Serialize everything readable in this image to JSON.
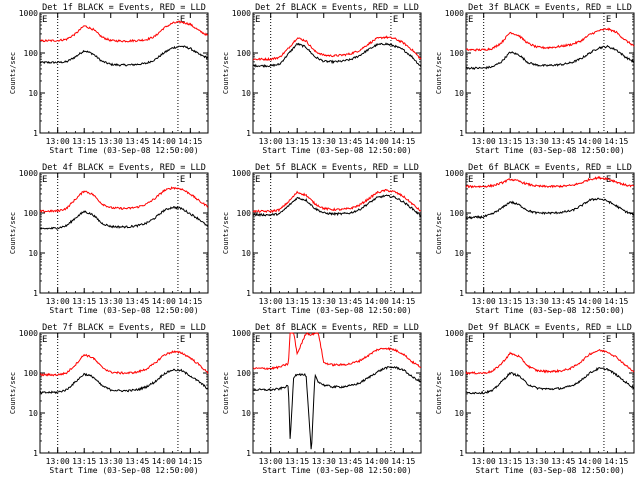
{
  "figure": {
    "ylabel": "Counts/sec",
    "xlabel": "Start Time (03-Sep-08 12:50:00)",
    "y_ticks": [
      "1",
      "10",
      "100",
      "1000"
    ],
    "x_ticks": [
      "13:00",
      "13:15",
      "13:30",
      "13:45",
      "14:00",
      "14:15"
    ],
    "corner_markers": [
      "E",
      "E"
    ],
    "series_colors": {
      "events": "#000000",
      "lld": "#ff0000"
    }
  },
  "chart_data": [
    {
      "type": "line",
      "title": "Det 1f BLACK = Events, RED = LLD",
      "xlabel": "Start Time (03-Sep-08 12:50:00)",
      "ylabel": "Counts/sec",
      "xlim": [
        "12:50",
        "14:25"
      ],
      "ylim": [
        1,
        1000
      ],
      "yscale": "log",
      "grid": false,
      "markers": [
        "13:00",
        "14:08"
      ],
      "x": [
        "12:50",
        "13:00",
        "13:05",
        "13:10",
        "13:15",
        "13:20",
        "13:25",
        "13:30",
        "13:35",
        "13:40",
        "13:45",
        "13:50",
        "13:55",
        "14:00",
        "14:05",
        "14:10",
        "14:15",
        "14:20",
        "14:25"
      ],
      "series": [
        {
          "values": [
            58,
            58,
            60,
            80,
            115,
            95,
            62,
            52,
            50,
            50,
            52,
            55,
            68,
            100,
            135,
            148,
            130,
            92,
            75
          ]
        },
        {
          "values": [
            200,
            205,
            220,
            300,
            480,
            390,
            250,
            205,
            200,
            200,
            205,
            215,
            260,
            420,
            560,
            600,
            520,
            360,
            270
          ]
        }
      ]
    },
    {
      "type": "line",
      "title": "Det 2f BLACK = Events, RED = LLD",
      "xlabel": "Start Time (03-Sep-08 12:50:00)",
      "ylabel": "Counts/sec",
      "xlim": [
        "12:50",
        "14:25"
      ],
      "ylim": [
        1,
        1000
      ],
      "yscale": "log",
      "grid": false,
      "markers": [
        "13:00",
        "14:08"
      ],
      "x": [
        "12:50",
        "13:00",
        "13:05",
        "13:10",
        "13:15",
        "13:20",
        "13:25",
        "13:30",
        "13:35",
        "13:40",
        "13:45",
        "13:50",
        "13:55",
        "14:00",
        "14:05",
        "14:10",
        "14:15",
        "14:20",
        "14:25"
      ],
      "series": [
        {
          "values": [
            48,
            48,
            52,
            95,
            170,
            140,
            80,
            62,
            60,
            62,
            68,
            85,
            120,
            160,
            170,
            150,
            120,
            80,
            45
          ]
        },
        {
          "values": [
            70,
            70,
            78,
            130,
            240,
            200,
            110,
            88,
            85,
            88,
            95,
            115,
            165,
            230,
            250,
            230,
            180,
            120,
            70
          ]
        }
      ]
    },
    {
      "type": "line",
      "title": "Det 3f BLACK = Events, RED = LLD",
      "xlabel": "Start Time (03-Sep-08 12:50:00)",
      "ylabel": "Counts/sec",
      "xlim": [
        "12:50",
        "14:25"
      ],
      "ylim": [
        1,
        1000
      ],
      "yscale": "log",
      "grid": false,
      "markers": [
        "13:00",
        "14:08"
      ],
      "x": [
        "12:50",
        "13:00",
        "13:05",
        "13:10",
        "13:15",
        "13:20",
        "13:25",
        "13:30",
        "13:35",
        "13:40",
        "13:45",
        "13:50",
        "13:55",
        "14:00",
        "14:05",
        "14:10",
        "14:15",
        "14:20",
        "14:25"
      ],
      "series": [
        {
          "values": [
            42,
            42,
            45,
            60,
            105,
            90,
            58,
            50,
            48,
            50,
            52,
            58,
            72,
            100,
            135,
            145,
            120,
            80,
            60
          ]
        },
        {
          "values": [
            120,
            120,
            130,
            180,
            330,
            270,
            175,
            140,
            135,
            140,
            150,
            165,
            200,
            290,
            360,
            400,
            330,
            210,
            150
          ]
        }
      ]
    },
    {
      "type": "line",
      "title": "Det 4f BLACK = Events, RED = LLD",
      "xlabel": "Start Time (03-Sep-08 12:50:00)",
      "ylabel": "Counts/sec",
      "xlim": [
        "12:50",
        "14:25"
      ],
      "ylim": [
        1,
        1000
      ],
      "yscale": "log",
      "grid": false,
      "markers": [
        "13:00",
        "14:08"
      ],
      "x": [
        "12:50",
        "13:00",
        "13:05",
        "13:10",
        "13:15",
        "13:20",
        "13:25",
        "13:30",
        "13:35",
        "13:40",
        "13:45",
        "13:50",
        "13:55",
        "14:00",
        "14:05",
        "14:10",
        "14:15",
        "14:20",
        "14:25"
      ],
      "series": [
        {
          "values": [
            40,
            42,
            48,
            75,
            110,
            90,
            55,
            46,
            45,
            45,
            48,
            55,
            75,
            115,
            140,
            130,
            95,
            70,
            45
          ]
        },
        {
          "values": [
            110,
            112,
            130,
            220,
            360,
            290,
            170,
            135,
            130,
            130,
            140,
            165,
            230,
            360,
            430,
            400,
            300,
            200,
            145
          ]
        }
      ]
    },
    {
      "type": "line",
      "title": "Det 5f BLACK = Events, RED = LLD",
      "xlabel": "Start Time (03-Sep-08 12:50:00)",
      "ylabel": "Counts/sec",
      "xlim": [
        "12:50",
        "14:25"
      ],
      "ylim": [
        1,
        1000
      ],
      "yscale": "log",
      "grid": false,
      "markers": [
        "13:00",
        "14:08"
      ],
      "x": [
        "12:50",
        "13:00",
        "13:05",
        "13:10",
        "13:15",
        "13:20",
        "13:25",
        "13:30",
        "13:35",
        "13:40",
        "13:45",
        "13:50",
        "13:55",
        "14:00",
        "14:05",
        "14:10",
        "14:15",
        "14:20",
        "14:25"
      ],
      "series": [
        {
          "values": [
            90,
            90,
            95,
            150,
            240,
            210,
            130,
            100,
            95,
            95,
            100,
            120,
            170,
            240,
            270,
            250,
            190,
            130,
            85
          ]
        },
        {
          "values": [
            110,
            110,
            120,
            190,
            330,
            280,
            170,
            130,
            122,
            122,
            130,
            155,
            220,
            320,
            370,
            340,
            260,
            170,
            110
          ]
        }
      ]
    },
    {
      "type": "line",
      "title": "Det 6f BLACK = Events, RED = LLD",
      "xlabel": "Start Time (03-Sep-08 12:50:00)",
      "ylabel": "Counts/sec",
      "xlim": [
        "12:50",
        "14:25"
      ],
      "ylim": [
        1,
        1000
      ],
      "yscale": "log",
      "grid": false,
      "markers": [
        "13:00",
        "14:08"
      ],
      "x": [
        "12:50",
        "13:00",
        "13:05",
        "13:10",
        "13:15",
        "13:20",
        "13:25",
        "13:30",
        "13:35",
        "13:40",
        "13:45",
        "13:50",
        "13:55",
        "14:00",
        "14:05",
        "14:10",
        "14:15",
        "14:20",
        "14:25"
      ],
      "series": [
        {
          "values": [
            75,
            80,
            95,
            130,
            190,
            160,
            115,
            100,
            100,
            100,
            105,
            115,
            150,
            210,
            230,
            200,
            150,
            110,
            90
          ]
        },
        {
          "values": [
            460,
            460,
            480,
            560,
            700,
            620,
            520,
            470,
            460,
            460,
            470,
            490,
            560,
            700,
            760,
            720,
            600,
            500,
            470
          ]
        }
      ]
    },
    {
      "type": "line",
      "title": "Det 7f BLACK = Events, RED = LLD",
      "xlabel": "Start Time (03-Sep-08 12:50:00)",
      "ylabel": "Counts/sec",
      "xlim": [
        "12:50",
        "14:25"
      ],
      "ylim": [
        1,
        1000
      ],
      "yscale": "log",
      "grid": false,
      "markers": [
        "13:00",
        "14:08"
      ],
      "x": [
        "12:50",
        "13:00",
        "13:05",
        "13:10",
        "13:15",
        "13:20",
        "13:25",
        "13:30",
        "13:35",
        "13:40",
        "13:45",
        "13:50",
        "13:55",
        "14:00",
        "14:05",
        "14:10",
        "14:15",
        "14:20",
        "14:25"
      ],
      "series": [
        {
          "values": [
            32,
            33,
            38,
            60,
            95,
            80,
            48,
            38,
            36,
            36,
            38,
            45,
            60,
            95,
            120,
            115,
            85,
            60,
            40
          ]
        },
        {
          "values": [
            90,
            90,
            100,
            160,
            290,
            240,
            140,
            105,
            100,
            100,
            105,
            125,
            175,
            280,
            340,
            320,
            240,
            160,
            100
          ]
        }
      ]
    },
    {
      "type": "line",
      "title": "Det 8f BLACK = Events, RED = LLD",
      "xlabel": "Start Time (03-Sep-08 12:50:00)",
      "ylabel": "Counts/sec",
      "xlim": [
        "12:50",
        "14:25"
      ],
      "ylim": [
        1,
        1000
      ],
      "yscale": "log",
      "grid": false,
      "markers": [
        "13:00",
        "14:08"
      ],
      "x": [
        "12:50",
        "13:00",
        "13:05",
        "13:10",
        "13:11",
        "13:13",
        "13:15",
        "13:20",
        "13:23",
        "13:25",
        "13:27",
        "13:30",
        "13:35",
        "13:40",
        "13:45",
        "13:50",
        "13:55",
        "14:00",
        "14:05",
        "14:10",
        "14:15",
        "14:20",
        "14:25"
      ],
      "series": [
        {
          "values": [
            38,
            38,
            40,
            48,
            2,
            80,
            95,
            88,
            1,
            90,
            60,
            50,
            45,
            45,
            48,
            55,
            75,
            105,
            135,
            140,
            120,
            80,
            60
          ]
        },
        {
          "values": [
            130,
            130,
            140,
            170,
            1000,
            1000,
            300,
            1000,
            900,
            1000,
            1000,
            180,
            160,
            160,
            170,
            200,
            270,
            380,
            420,
            380,
            300,
            190,
            140
          ]
        }
      ]
    },
    {
      "type": "line",
      "title": "Det 9f BLACK = Events, RED = LLD",
      "xlabel": "Start Time (03-Sep-08 12:50:00)",
      "ylabel": "Counts/sec",
      "xlim": [
        "12:50",
        "14:25"
      ],
      "ylim": [
        1,
        1000
      ],
      "yscale": "log",
      "grid": false,
      "markers": [
        "13:00",
        "14:08"
      ],
      "x": [
        "12:50",
        "13:00",
        "13:05",
        "13:10",
        "13:15",
        "13:20",
        "13:25",
        "13:30",
        "13:35",
        "13:40",
        "13:45",
        "13:50",
        "13:55",
        "14:00",
        "14:05",
        "14:10",
        "14:15",
        "14:20",
        "14:25"
      ],
      "series": [
        {
          "values": [
            32,
            32,
            36,
            60,
            100,
            85,
            52,
            42,
            40,
            40,
            42,
            48,
            65,
            100,
            130,
            125,
            90,
            60,
            42
          ]
        },
        {
          "values": [
            100,
            100,
            110,
            170,
            310,
            260,
            150,
            115,
            110,
            110,
            115,
            135,
            190,
            300,
            370,
            340,
            250,
            160,
            105
          ]
        }
      ]
    }
  ]
}
